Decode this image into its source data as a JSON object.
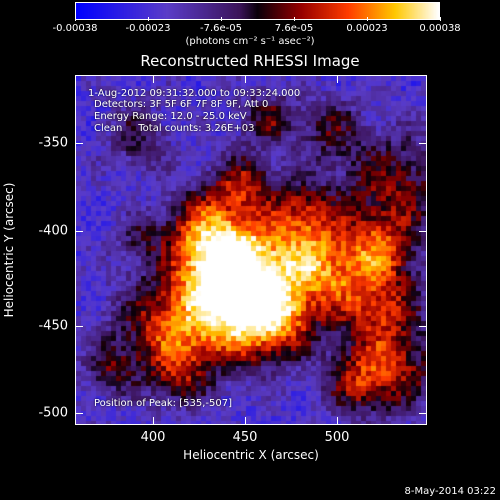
{
  "colorbar": {
    "ticks": [
      "-0.00038",
      "-0.00023",
      "-7.6e-05",
      "7.6e-05",
      "0.00023",
      "0.00038"
    ],
    "unit": "(photons cm⁻² s⁻¹ asec⁻²)"
  },
  "title": "Reconstructed RHESSI Image",
  "info": {
    "time_range": "1-Aug-2012 09:31:32.000 to 09:33:24.000",
    "detectors": "Detectors: 3F 5F 6F 7F 8F 9F, Att 0",
    "energy": "Energy Range: 12.0 - 25.0 keV",
    "clean": "Clean     Total counts: 3.26E+03",
    "peak": "Position of Peak: [535,-507]"
  },
  "axes": {
    "xlabel": "Heliocentric X (arcsec)",
    "ylabel": "Heliocentric Y (arcsec)",
    "xticks": [
      "400",
      "450",
      "500"
    ],
    "yticks": [
      "-350",
      "-400",
      "-450",
      "-500"
    ]
  },
  "datestamp": "8-May-2014 03:22"
}
